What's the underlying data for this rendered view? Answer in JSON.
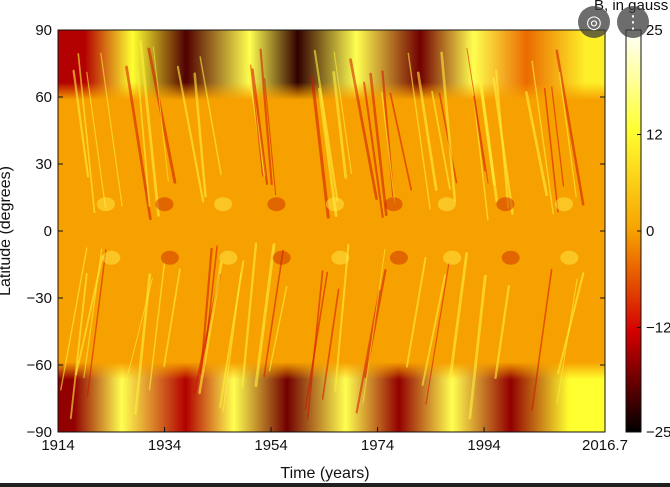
{
  "colors": {
    "strong_neg": "#000000",
    "neg": "#d30000",
    "neutral": "#f7a100",
    "pos": "#ffff30",
    "strong_pos": "#ffffff"
  },
  "icons": {
    "lens": "camera-lens-icon",
    "more": "more-vert-icon"
  },
  "chart_data": {
    "type": "heatmap",
    "title": "",
    "xlabel": "Time (years)",
    "ylabel": "Latitude (degrees)",
    "xlim": [
      1914,
      2016.7
    ],
    "ylim": [
      -90,
      90
    ],
    "x_ticks": [
      "1914",
      "1934",
      "1954",
      "1974",
      "1994",
      "2016.7"
    ],
    "y_ticks": [
      "90",
      "60",
      "30",
      "0",
      "−30",
      "−60",
      "−90"
    ],
    "colorbar": {
      "label": "B, in gauss",
      "range": [
        -25,
        25
      ],
      "ticks": [
        "25",
        "12",
        "0",
        "−12",
        "−25"
      ]
    },
    "grid": false,
    "description_values": {
      "north_pole_band": [
        {
          "x": 1919,
          "value": -14
        },
        {
          "x": 1928,
          "value": 12
        },
        {
          "x": 1938,
          "value": -20
        },
        {
          "x": 1950,
          "value": 14
        },
        {
          "x": 1959,
          "value": -22
        },
        {
          "x": 1970,
          "value": 14
        },
        {
          "x": 1982,
          "value": -18
        },
        {
          "x": 1992,
          "value": 14
        },
        {
          "x": 2002,
          "value": -4
        },
        {
          "x": 2013,
          "value": 10
        }
      ],
      "south_pole_band": [
        {
          "x": 1917,
          "value": -16
        },
        {
          "x": 1926,
          "value": 14
        },
        {
          "x": 1938,
          "value": -14
        },
        {
          "x": 1947,
          "value": 14
        },
        {
          "x": 1957,
          "value": -18
        },
        {
          "x": 1968,
          "value": 14
        },
        {
          "x": 1978,
          "value": -16
        },
        {
          "x": 1988,
          "value": 14
        },
        {
          "x": 1999,
          "value": -16
        },
        {
          "x": 2010,
          "value": 12
        }
      ]
    }
  }
}
